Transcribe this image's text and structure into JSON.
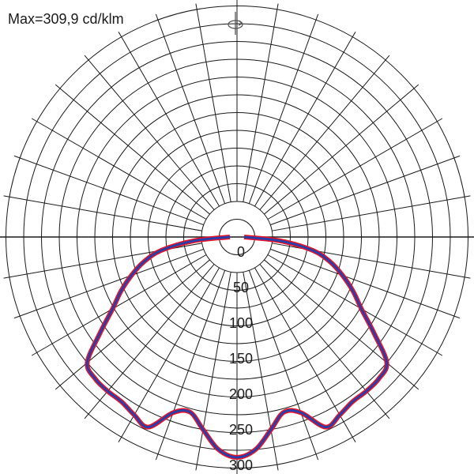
{
  "header": {
    "max_label": "Max=309,9 cd/klm"
  },
  "icons": {
    "rotation": "rotation-symbol-icon"
  },
  "chart_data": {
    "type": "polar",
    "units": "cd/klm",
    "max_value": 309.9,
    "radial_ticks": [
      "0",
      "50",
      "100",
      "150",
      "200",
      "250",
      "300"
    ],
    "radial_tick_values": [
      0,
      50,
      100,
      150,
      200,
      250,
      300
    ],
    "angle_step_deg": 10,
    "grid": true,
    "series": [
      {
        "color_outer": "#e8132a",
        "color_inner": "#2a3ea8",
        "points": [
          {
            "angle": 0,
            "value": 309.9
          },
          {
            "angle": 5,
            "value": 300
          },
          {
            "angle": 10,
            "value": 275
          },
          {
            "angle": 15,
            "value": 255
          },
          {
            "angle": 20,
            "value": 263
          },
          {
            "angle": 25,
            "value": 295
          },
          {
            "angle": 30,
            "value": 289
          },
          {
            "angle": 35,
            "value": 283
          },
          {
            "angle": 40,
            "value": 283
          },
          {
            "angle": 45,
            "value": 282
          },
          {
            "angle": 50,
            "value": 275
          },
          {
            "angle": 55,
            "value": 235
          },
          {
            "angle": 60,
            "value": 202
          },
          {
            "angle": 65,
            "value": 180
          },
          {
            "angle": 70,
            "value": 158
          },
          {
            "angle": 75,
            "value": 136
          },
          {
            "angle": 80,
            "value": 108
          },
          {
            "angle": 85,
            "value": 60
          },
          {
            "angle": 90,
            "value": 10
          }
        ]
      }
    ]
  }
}
